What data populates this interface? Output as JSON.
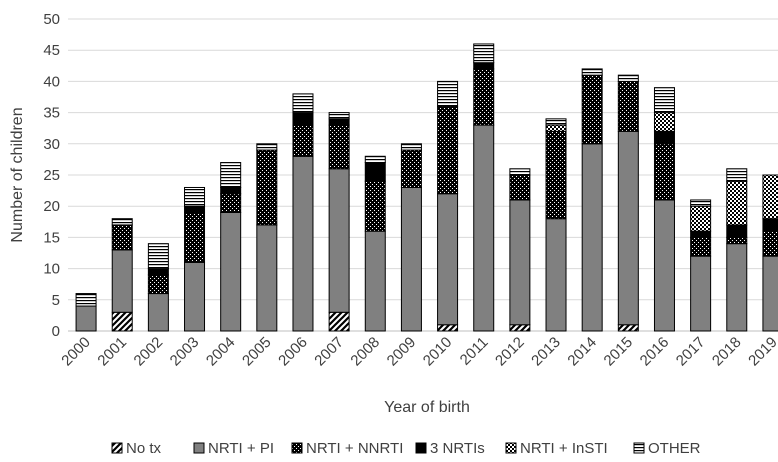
{
  "chart_data": {
    "type": "bar",
    "stacked": true,
    "title": "",
    "xlabel": "Year of birth",
    "ylabel": "Number of children",
    "ylim": [
      0,
      50
    ],
    "yticks": [
      0,
      5,
      10,
      15,
      20,
      25,
      30,
      35,
      40,
      45,
      50
    ],
    "grid": true,
    "legend_position": "bottom",
    "categories": [
      "2000",
      "2001",
      "2002",
      "2003",
      "2004",
      "2005",
      "2006",
      "2007",
      "2008",
      "2009",
      "2010",
      "2011",
      "2012",
      "2013",
      "2014",
      "2015",
      "2016",
      "2017",
      "2018",
      "2019"
    ],
    "series": [
      {
        "name": "No tx",
        "pattern": "diagonal-stripes",
        "values": [
          0,
          3,
          0,
          0,
          0,
          0,
          0,
          3,
          0,
          0,
          1,
          0,
          1,
          0,
          0,
          1,
          0,
          0,
          0,
          0
        ]
      },
      {
        "name": "NRTI + PI",
        "pattern": "solid-gray",
        "values": [
          4,
          10,
          6,
          11,
          19,
          17,
          28,
          23,
          16,
          23,
          21,
          33,
          20,
          18,
          30,
          31,
          21,
          12,
          14,
          12
        ]
      },
      {
        "name": "NRTI + NNRTI",
        "pattern": "dotted-black",
        "values": [
          0,
          4,
          3,
          8,
          3,
          12,
          5,
          7,
          8,
          6,
          14,
          9,
          4,
          14,
          11,
          8,
          9,
          3,
          1,
          4
        ]
      },
      {
        "name": "3 NRTIs",
        "pattern": "solid-black",
        "values": [
          0,
          0,
          1,
          1,
          1,
          0,
          2,
          1,
          3,
          0,
          0,
          1,
          0,
          0,
          0,
          0,
          2,
          1,
          2,
          2
        ]
      },
      {
        "name": "NRTI + InSTI",
        "pattern": "checkered",
        "values": [
          0,
          0,
          0,
          0,
          0,
          0,
          0,
          0,
          0,
          0,
          0,
          0,
          0,
          1,
          0,
          0,
          3,
          4,
          7,
          7
        ]
      },
      {
        "name": "OTHER",
        "pattern": "horizontal-stripes",
        "values": [
          2,
          1,
          4,
          3,
          4,
          1,
          3,
          1,
          1,
          1,
          4,
          3,
          1,
          1,
          1,
          1,
          4,
          1,
          2,
          0
        ]
      }
    ],
    "colors": {
      "gray": "#808080",
      "black": "#000000",
      "text": "#404040",
      "grid": "#d9d9d9"
    }
  }
}
